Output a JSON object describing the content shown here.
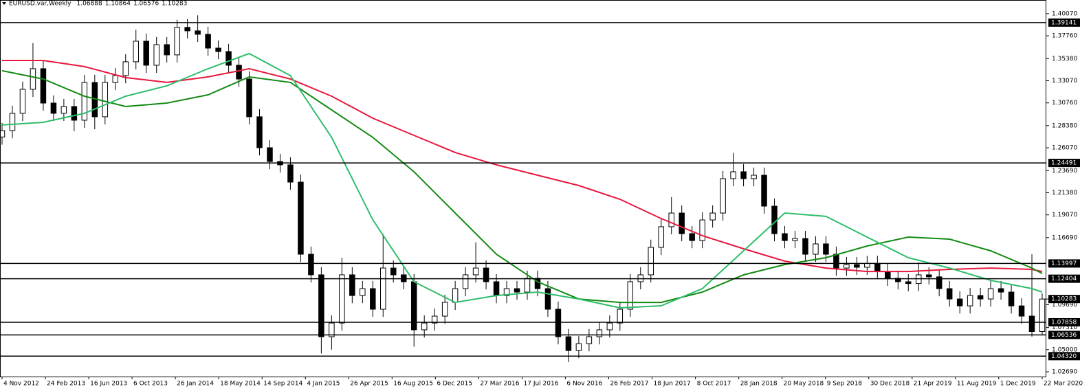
{
  "chart_data": {
    "type": "candlestick",
    "title": "EURUSD.var,Weekly",
    "header_values": [
      "1.06888",
      "1.10864",
      "1.06576",
      "1.10283"
    ],
    "x": [
      0,
      1,
      2,
      3,
      4,
      5,
      6,
      7,
      8,
      9,
      10,
      11,
      12,
      13,
      14,
      15,
      16,
      17,
      18,
      19,
      20,
      21,
      22,
      23,
      24,
      25,
      26,
      27,
      28,
      29,
      30,
      31,
      32,
      33,
      34,
      35,
      36,
      37,
      38,
      39,
      40,
      41,
      42,
      43,
      44,
      45,
      46,
      47,
      48,
      49,
      50,
      51,
      52,
      53,
      54,
      55,
      56,
      57,
      58,
      59,
      60,
      61,
      62,
      63,
      64,
      65,
      66,
      67,
      68,
      69,
      70,
      71,
      72,
      73,
      74,
      75,
      76,
      77,
      78,
      79,
      80,
      81,
      82,
      83,
      84,
      85,
      86,
      87,
      88,
      89,
      90,
      91,
      92,
      93,
      94,
      95,
      96,
      97,
      98,
      99,
      100,
      101
    ],
    "open": [
      1.272,
      1.2787,
      1.2967,
      1.3218,
      1.3433,
      1.3074,
      1.2967,
      1.3038,
      1.2895,
      1.3289,
      1.2931,
      1.3289,
      1.3361,
      1.3505,
      1.372,
      1.3469,
      1.3684,
      1.3577,
      1.3864,
      1.3828,
      1.3792,
      1.3648,
      1.3612,
      1.3469,
      1.3325,
      1.2931,
      1.2608,
      1.2464,
      1.2429,
      1.2249,
      1.1496,
      1.1281,
      1.0635,
      1.0778,
      1.1281,
      1.1065,
      1.1137,
      1.0922,
      1.1352,
      1.1281,
      1.1209,
      1.0707,
      1.0778,
      1.085,
      1.0994,
      1.1137,
      1.1281,
      1.1352,
      1.1209,
      1.1065,
      1.1137,
      1.1101,
      1.1245,
      1.1137,
      1.0922,
      1.0635,
      1.0491,
      1.0563,
      1.0635,
      1.0707,
      1.0778,
      1.0922,
      1.1209,
      1.1281,
      1.1568,
      1.1783,
      1.1926,
      1.1711,
      1.1639,
      1.1854,
      1.1926,
      1.2285,
      1.2357,
      1.2285,
      1.2321,
      1.1998,
      1.1711,
      1.1639,
      1.166,
      1.1496,
      1.1604,
      1.1496,
      1.1352,
      1.1388,
      1.136,
      1.14,
      1.1316,
      1.1245,
      1.1209,
      1.119,
      1.1281,
      1.126,
      1.1137,
      1.1029,
      1.0957,
      1.1065,
      1.1029,
      1.1137,
      1.1101,
      1.0957,
      1.085,
      1.06888
    ],
    "high": [
      1.2867,
      1.3047,
      1.3298,
      1.37,
      1.3513,
      1.3154,
      1.3118,
      1.3118,
      1.3369,
      1.3369,
      1.3369,
      1.3441,
      1.3585,
      1.384,
      1.38,
      1.3764,
      1.3764,
      1.3944,
      1.395,
      1.399,
      1.3872,
      1.3728,
      1.3692,
      1.3549,
      1.3405,
      1.3011,
      1.2688,
      1.2544,
      1.2509,
      1.2329,
      1.1576,
      1.1361,
      1.0858,
      1.146,
      1.1361,
      1.1217,
      1.1217,
      1.171,
      1.1432,
      1.1361,
      1.1289,
      1.0858,
      1.093,
      1.1074,
      1.1217,
      1.1361,
      1.162,
      1.1432,
      1.1289,
      1.1217,
      1.1217,
      1.1325,
      1.1325,
      1.1217,
      1.1002,
      1.0715,
      1.0643,
      1.0715,
      1.0787,
      1.0858,
      1.1002,
      1.1289,
      1.1361,
      1.1648,
      1.1863,
      1.2092,
      1.2006,
      1.1791,
      1.1934,
      1.2006,
      1.2365,
      1.2555,
      1.2437,
      1.2401,
      1.2401,
      1.2078,
      1.1791,
      1.174,
      1.174,
      1.1684,
      1.1684,
      1.1576,
      1.1468,
      1.1468,
      1.148,
      1.148,
      1.1396,
      1.1325,
      1.1289,
      1.1412,
      1.1361,
      1.134,
      1.1217,
      1.1109,
      1.1145,
      1.1145,
      1.1217,
      1.1217,
      1.1181,
      1.1037,
      1.1496,
      1.10864
    ],
    "low": [
      1.264,
      1.2707,
      1.2887,
      1.3138,
      1.2994,
      1.2887,
      1.2887,
      1.278,
      1.2815,
      1.28,
      1.2851,
      1.3209,
      1.3281,
      1.3425,
      1.3389,
      1.3389,
      1.3497,
      1.3497,
      1.3748,
      1.3712,
      1.3568,
      1.3532,
      1.3389,
      1.3245,
      1.2851,
      1.2528,
      1.2384,
      1.2349,
      1.2169,
      1.1416,
      1.1201,
      1.046,
      1.05,
      1.0698,
      1.0985,
      1.0985,
      1.0842,
      1.0842,
      1.1201,
      1.1129,
      1.053,
      1.0627,
      1.0698,
      1.077,
      1.0914,
      1.1057,
      1.1201,
      1.1129,
      1.0985,
      1.0985,
      1.1021,
      1.1021,
      1.1057,
      1.0842,
      1.0555,
      1.037,
      1.0411,
      1.0483,
      1.0555,
      1.0627,
      1.0698,
      1.0842,
      1.1129,
      1.1201,
      1.1488,
      1.1703,
      1.1631,
      1.1559,
      1.1559,
      1.1774,
      1.1846,
      1.2205,
      1.2205,
      1.2205,
      1.1918,
      1.1631,
      1.1559,
      1.1559,
      1.1416,
      1.1416,
      1.1416,
      1.1272,
      1.1272,
      1.128,
      1.128,
      1.1236,
      1.1165,
      1.1129,
      1.111,
      1.111,
      1.118,
      1.1057,
      1.0949,
      1.0877,
      1.0877,
      1.0949,
      1.0949,
      1.1021,
      1.0877,
      1.077,
      1.0636,
      1.06576
    ],
    "close": [
      1.2787,
      1.2967,
      1.3218,
      1.3433,
      1.3074,
      1.2967,
      1.3038,
      1.2895,
      1.3289,
      1.2931,
      1.3289,
      1.3361,
      1.3505,
      1.372,
      1.3469,
      1.3684,
      1.3577,
      1.3864,
      1.3828,
      1.3792,
      1.3648,
      1.3612,
      1.3469,
      1.3325,
      1.2931,
      1.2608,
      1.2464,
      1.2429,
      1.2249,
      1.1496,
      1.1281,
      1.0635,
      1.0778,
      1.1281,
      1.1065,
      1.1137,
      1.0922,
      1.1352,
      1.1281,
      1.1209,
      1.0707,
      1.0778,
      1.085,
      1.0994,
      1.1137,
      1.1281,
      1.1352,
      1.1209,
      1.1065,
      1.1137,
      1.1101,
      1.1245,
      1.1137,
      1.0922,
      1.0635,
      1.0491,
      1.0563,
      1.0635,
      1.0707,
      1.0778,
      1.0922,
      1.1209,
      1.1281,
      1.1568,
      1.1783,
      1.1926,
      1.1711,
      1.1639,
      1.1854,
      1.1926,
      1.2285,
      1.2357,
      1.2285,
      1.2321,
      1.1998,
      1.1711,
      1.1639,
      1.166,
      1.1496,
      1.1604,
      1.1496,
      1.1352,
      1.1388,
      1.136,
      1.14,
      1.1316,
      1.1245,
      1.1209,
      1.119,
      1.1281,
      1.126,
      1.1137,
      1.1029,
      1.0957,
      1.1065,
      1.1029,
      1.1137,
      1.1101,
      1.0957,
      1.085,
      1.06888,
      1.10283
    ],
    "up_color": "#ffffff",
    "down_color": "#000000",
    "xlim": [
      -0.2,
      101.4
    ],
    "ylim": [
      1.0219,
      1.415
    ],
    "xticks": [
      {
        "value": 0,
        "label": "4 Nov 2012"
      },
      {
        "value": 4.21,
        "label": "24 Feb 2013"
      },
      {
        "value": 8.42,
        "label": "16 Jun 2013"
      },
      {
        "value": 12.62,
        "label": "6 Oct 2013"
      },
      {
        "value": 16.83,
        "label": "26 Jan 2014"
      },
      {
        "value": 21.04,
        "label": "18 May 2014"
      },
      {
        "value": 25.25,
        "label": "14 Sep 2014"
      },
      {
        "value": 29.46,
        "label": "4 Jan 2015"
      },
      {
        "value": 33.66,
        "label": "26 Apr 2015"
      },
      {
        "value": 37.87,
        "label": "16 Aug 2015"
      },
      {
        "value": 42.08,
        "label": "6 Dec 2015"
      },
      {
        "value": 46.29,
        "label": "27 Mar 2016"
      },
      {
        "value": 50.5,
        "label": "17 Jul 2016"
      },
      {
        "value": 54.7,
        "label": "6 Nov 2016"
      },
      {
        "value": 58.91,
        "label": "26 Feb 2017"
      },
      {
        "value": 63.12,
        "label": "18 Jun 2017"
      },
      {
        "value": 67.33,
        "label": "8 Oct 2017"
      },
      {
        "value": 71.54,
        "label": "28 Jan 2018"
      },
      {
        "value": 75.74,
        "label": "20 May 2018"
      },
      {
        "value": 79.95,
        "label": "9 Sep 2018"
      },
      {
        "value": 84.16,
        "label": "30 Dec 2018"
      },
      {
        "value": 88.37,
        "label": "21 Apr 2019"
      },
      {
        "value": 92.58,
        "label": "11 Aug 2019"
      },
      {
        "value": 96.78,
        "label": "1 Dec 2019"
      },
      {
        "value": 101,
        "label": "22 Mar 2020"
      }
    ],
    "yticks": [
      {
        "value": 1.4007,
        "label": "1.40070"
      },
      {
        "value": 1.3776,
        "label": "1.37760"
      },
      {
        "value": 1.3538,
        "label": "1.35380"
      },
      {
        "value": 1.3307,
        "label": "1.33070"
      },
      {
        "value": 1.3076,
        "label": "1.30760"
      },
      {
        "value": 1.2838,
        "label": "1.28380"
      },
      {
        "value": 1.2607,
        "label": "1.26070"
      },
      {
        "value": 1.2369,
        "label": "1.23690"
      },
      {
        "value": 1.2138,
        "label": "1.21380"
      },
      {
        "value": 1.1907,
        "label": "1.19070"
      },
      {
        "value": 1.1669,
        "label": "1.16690"
      },
      {
        "value": 1.0969,
        "label": "1.09690"
      },
      {
        "value": 1.0731,
        "label": "1.07310"
      },
      {
        "value": 1.05,
        "label": "1.05000"
      },
      {
        "value": 1.0269,
        "label": "1.02690"
      }
    ],
    "levels": [
      {
        "value": 1.39141,
        "label": "1.39141"
      },
      {
        "value": 1.24491,
        "label": "1.24491"
      },
      {
        "value": 1.13997,
        "label": "1.13997"
      },
      {
        "value": 1.12404,
        "label": "1.12404"
      },
      {
        "value": 1.07858,
        "label": "1.07858"
      },
      {
        "value": 1.06536,
        "label": "1.06536"
      },
      {
        "value": 1.0432,
        "label": "1.04320"
      }
    ],
    "last_price": {
      "value": 1.10283,
      "label": "1.10283"
    },
    "moving_averages": [
      {
        "color": "#e8163c",
        "x": [
          0,
          4,
          8,
          12,
          16,
          20,
          24,
          28,
          32,
          36,
          40,
          44,
          48,
          52,
          56,
          60,
          64,
          68,
          72,
          76,
          80,
          84,
          88,
          92,
          96,
          100,
          101
        ],
        "values": [
          1.3519,
          1.3519,
          1.3455,
          1.334,
          1.329,
          1.3347,
          1.3433,
          1.3325,
          1.3146,
          1.2916,
          1.2737,
          1.2558,
          1.2429,
          1.2321,
          1.2213,
          1.207,
          1.1869,
          1.169,
          1.1553,
          1.1424,
          1.1352,
          1.1316,
          1.1316,
          1.1338,
          1.1352,
          1.1338,
          1.1316
        ]
      },
      {
        "color": "#138a13",
        "x": [
          0,
          4,
          8,
          12,
          16,
          20,
          24,
          28,
          32,
          36,
          40,
          44,
          48,
          52,
          56,
          60,
          64,
          68,
          72,
          76,
          80,
          84,
          88,
          92,
          96,
          100,
          101
        ],
        "values": [
          1.3412,
          1.3325,
          1.3146,
          1.3038,
          1.3074,
          1.316,
          1.3347,
          1.329,
          1.3002,
          1.2716,
          1.2357,
          1.1926,
          1.1496,
          1.1209,
          1.1029,
          1.0993,
          1.0993,
          1.1101,
          1.1281,
          1.1388,
          1.146,
          1.1582,
          1.1675,
          1.1654,
          1.1532,
          1.1352,
          1.1295
        ]
      },
      {
        "color": "#2ebd6b",
        "x": [
          0,
          4,
          8,
          12,
          16,
          20,
          24,
          28,
          32,
          36,
          40,
          44,
          48,
          52,
          56,
          60,
          64,
          68,
          72,
          76,
          80,
          84,
          88,
          92,
          96,
          100,
          101
        ],
        "values": [
          1.2845,
          1.2873,
          1.2967,
          1.3146,
          1.3254,
          1.3433,
          1.3591,
          1.3361,
          1.2716,
          1.1855,
          1.1209,
          1.0993,
          1.1065,
          1.1101,
          1.1029,
          1.0936,
          1.0958,
          1.1137,
          1.1532,
          1.1926,
          1.1891,
          1.1675,
          1.146,
          1.1352,
          1.1223,
          1.1137,
          1.1101
        ]
      }
    ]
  }
}
